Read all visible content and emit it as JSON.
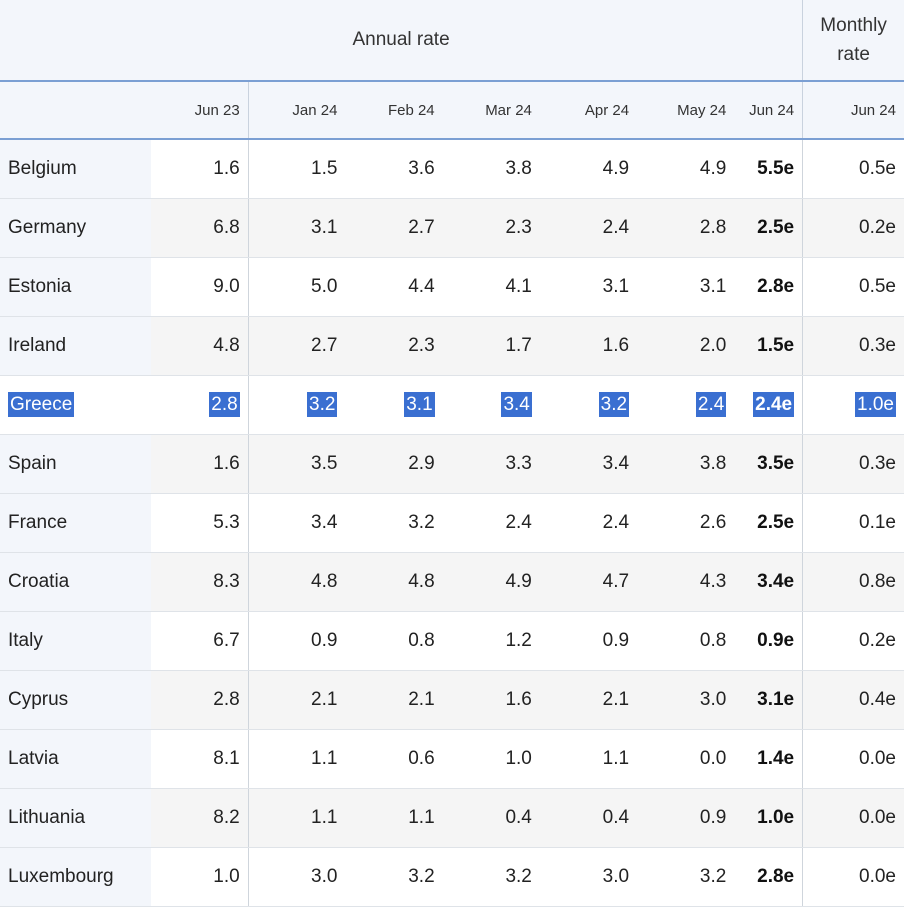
{
  "header": {
    "annual_label": "Annual rate",
    "monthly_label_line1": "Monthly",
    "monthly_label_line2": "rate",
    "periods": [
      "Jun 23",
      "Jan 24",
      "Feb 24",
      "Mar 24",
      "Apr 24",
      "May 24",
      "Jun 24",
      "Jun 24"
    ]
  },
  "selected_row": "Greece",
  "rows": [
    {
      "country": "Belgium",
      "values": [
        "1.6",
        "1.5",
        "3.6",
        "3.8",
        "4.9",
        "4.9",
        "5.5e",
        "0.5e"
      ]
    },
    {
      "country": "Germany",
      "values": [
        "6.8",
        "3.1",
        "2.7",
        "2.3",
        "2.4",
        "2.8",
        "2.5e",
        "0.2e"
      ]
    },
    {
      "country": "Estonia",
      "values": [
        "9.0",
        "5.0",
        "4.4",
        "4.1",
        "3.1",
        "3.1",
        "2.8e",
        "0.5e"
      ]
    },
    {
      "country": "Ireland",
      "values": [
        "4.8",
        "2.7",
        "2.3",
        "1.7",
        "1.6",
        "2.0",
        "1.5e",
        "0.3e"
      ]
    },
    {
      "country": "Greece",
      "values": [
        "2.8",
        "3.2",
        "3.1",
        "3.4",
        "3.2",
        "2.4",
        "2.4e",
        "1.0e"
      ]
    },
    {
      "country": "Spain",
      "values": [
        "1.6",
        "3.5",
        "2.9",
        "3.3",
        "3.4",
        "3.8",
        "3.5e",
        "0.3e"
      ]
    },
    {
      "country": "France",
      "values": [
        "5.3",
        "3.4",
        "3.2",
        "2.4",
        "2.4",
        "2.6",
        "2.5e",
        "0.1e"
      ]
    },
    {
      "country": "Croatia",
      "values": [
        "8.3",
        "4.8",
        "4.8",
        "4.9",
        "4.7",
        "4.3",
        "3.4e",
        "0.8e"
      ]
    },
    {
      "country": "Italy",
      "values": [
        "6.7",
        "0.9",
        "0.8",
        "1.2",
        "0.9",
        "0.8",
        "0.9e",
        "0.2e"
      ]
    },
    {
      "country": "Cyprus",
      "values": [
        "2.8",
        "2.1",
        "2.1",
        "1.6",
        "2.1",
        "3.0",
        "3.1e",
        "0.4e"
      ]
    },
    {
      "country": "Latvia",
      "values": [
        "8.1",
        "1.1",
        "0.6",
        "1.0",
        "1.1",
        "0.0",
        "1.4e",
        "0.0e"
      ]
    },
    {
      "country": "Lithuania",
      "values": [
        "8.2",
        "1.1",
        "1.1",
        "0.4",
        "0.4",
        "0.9",
        "1.0e",
        "0.0e"
      ]
    },
    {
      "country": "Luxembourg",
      "values": [
        "1.0",
        "3.0",
        "3.2",
        "3.2",
        "3.0",
        "3.2",
        "2.8e",
        "0.0e"
      ]
    }
  ]
}
